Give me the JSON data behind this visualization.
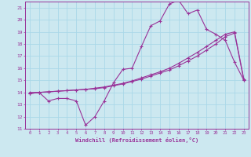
{
  "xlabel": "Windchill (Refroidissement éolien,°C)",
  "background_color": "#cce8f0",
  "grid_color": "#aad8e8",
  "line_color": "#993399",
  "hours": [
    0,
    1,
    2,
    3,
    4,
    5,
    6,
    7,
    8,
    9,
    10,
    11,
    12,
    13,
    14,
    15,
    16,
    17,
    18,
    19,
    20,
    21,
    22,
    23
  ],
  "temp": [
    14.0,
    14.0,
    13.3,
    13.5,
    13.5,
    13.3,
    11.3,
    12.0,
    13.3,
    14.8,
    15.9,
    16.0,
    17.8,
    19.5,
    19.9,
    21.3,
    21.6,
    20.5,
    20.8,
    19.2,
    18.8,
    18.3,
    16.5,
    15.0
  ],
  "line2": [
    13.9,
    14.0,
    14.05,
    14.1,
    14.15,
    14.2,
    14.25,
    14.3,
    14.4,
    14.55,
    14.7,
    14.9,
    15.1,
    15.35,
    15.6,
    15.85,
    16.2,
    16.6,
    17.0,
    17.5,
    18.0,
    18.6,
    18.9,
    15.0
  ],
  "line3": [
    13.9,
    14.0,
    14.05,
    14.1,
    14.15,
    14.2,
    14.25,
    14.35,
    14.45,
    14.6,
    14.75,
    14.95,
    15.2,
    15.45,
    15.7,
    16.0,
    16.4,
    16.85,
    17.3,
    17.8,
    18.3,
    18.8,
    19.0,
    15.1
  ],
  "ylim": [
    11,
    21.5
  ],
  "xlim": [
    -0.5,
    23.5
  ],
  "yticks": [
    11,
    12,
    13,
    14,
    15,
    16,
    17,
    18,
    19,
    20,
    21
  ],
  "xticks": [
    0,
    1,
    2,
    3,
    4,
    5,
    6,
    7,
    8,
    9,
    10,
    11,
    12,
    13,
    14,
    15,
    16,
    17,
    18,
    19,
    20,
    21,
    22,
    23
  ]
}
